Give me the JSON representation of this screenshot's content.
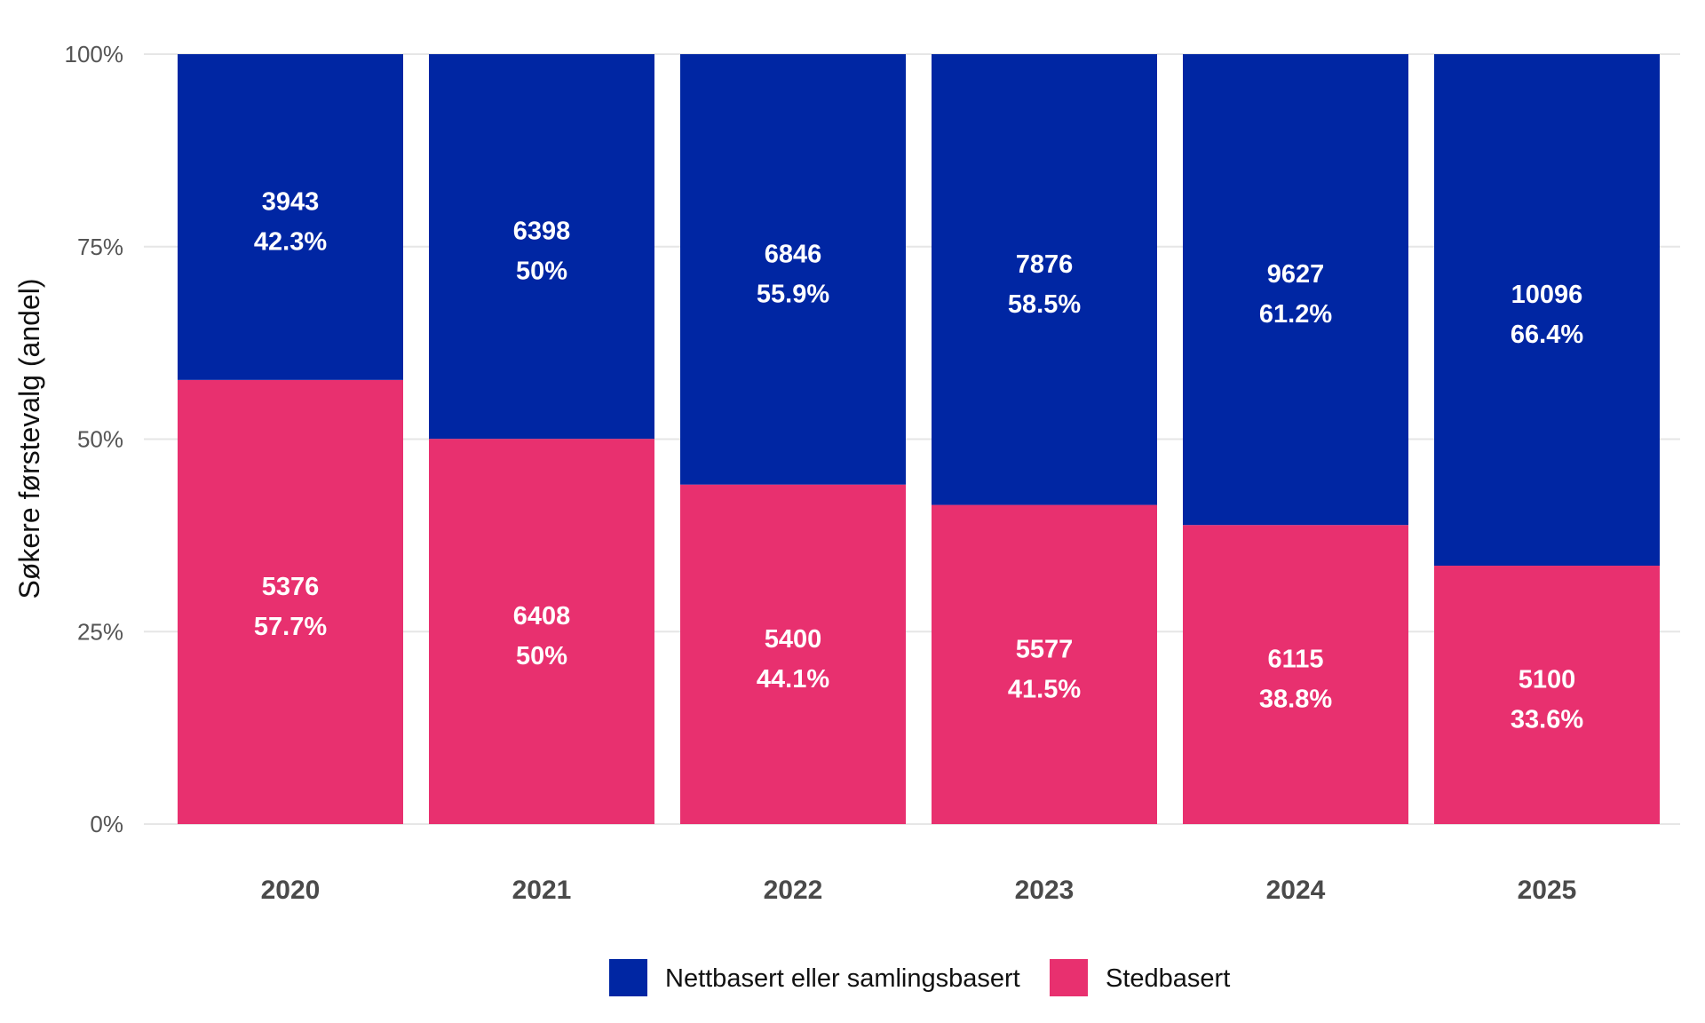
{
  "chart_data": {
    "type": "bar",
    "stacked": true,
    "normalized": true,
    "categories": [
      "2020",
      "2021",
      "2022",
      "2023",
      "2024",
      "2025"
    ],
    "series": [
      {
        "name": "Stedbasert",
        "color": "#e8306f",
        "values": [
          5376,
          6408,
          5400,
          5577,
          6115,
          5100
        ],
        "percent_labels": [
          "57.7%",
          "50%",
          "44.1%",
          "41.5%",
          "38.8%",
          "33.6%"
        ]
      },
      {
        "name": "Nettbasert eller samlingsbasert",
        "color": "#0026a3",
        "values": [
          3943,
          6398,
          6846,
          7876,
          9627,
          10096
        ],
        "percent_labels": [
          "42.3%",
          "50%",
          "55.9%",
          "58.5%",
          "61.2%",
          "66.4%"
        ]
      }
    ],
    "ylabel": "Søkere førstevalg (andel)",
    "xlabel": "",
    "ylim": [
      0,
      100
    ],
    "yticks": [
      "0%",
      "25%",
      "50%",
      "75%",
      "100%"
    ],
    "grid": true,
    "legend_position": "bottom",
    "legend_order": [
      "Nettbasert eller samlingsbasert",
      "Stedbasert"
    ]
  }
}
